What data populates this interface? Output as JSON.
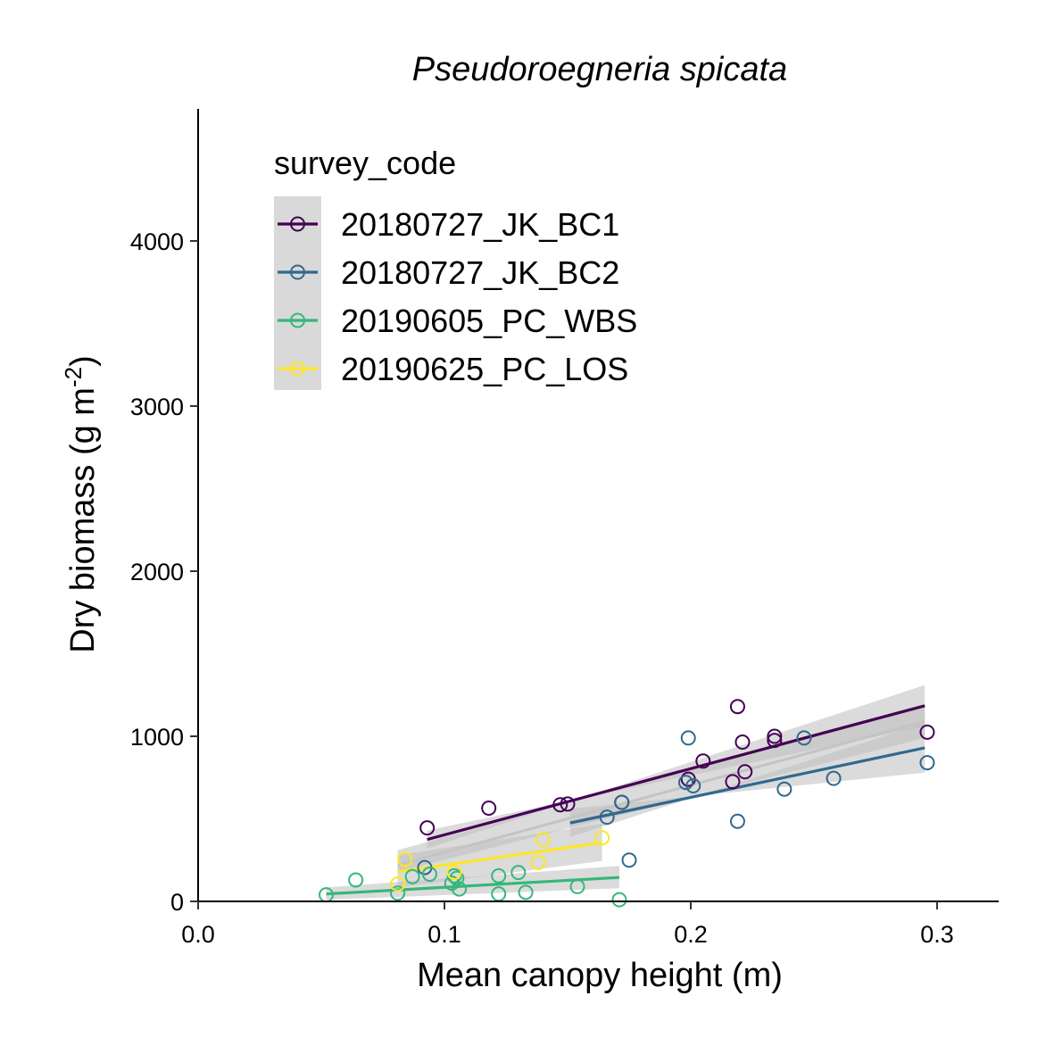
{
  "chart_data": {
    "type": "scatter",
    "title": "Pseudoroegneria spicata",
    "xlabel": "Mean canopy height (m)",
    "ylabel_main": "Dry biomass (g m",
    "ylabel_exp": "-2",
    "ylabel_close": ")",
    "xlim": [
      0,
      0.325
    ],
    "ylim": [
      0,
      4800
    ],
    "x_ticks": [
      0.0,
      0.1,
      0.2,
      0.3
    ],
    "x_tick_labels": [
      "0.0",
      "0.1",
      "0.2",
      "0.3"
    ],
    "y_ticks": [
      0,
      1000,
      2000,
      3000,
      4000
    ],
    "y_tick_labels": [
      "0",
      "1000",
      "2000",
      "3000",
      "4000"
    ],
    "grid": false,
    "legend_title": "survey_code",
    "legend_position": "top-left",
    "overall_fit": {
      "x": [
        0.081,
        0.295
      ],
      "y": [
        220,
        1090
      ],
      "band": [
        [
          310,
          180
        ],
        [
          1190,
          990
        ]
      ]
    },
    "series": [
      {
        "name": "20180727_JK_BC1",
        "color": "#440154",
        "points": [
          [
            0.093,
            445
          ],
          [
            0.118,
            565
          ],
          [
            0.147,
            585
          ],
          [
            0.15,
            590
          ],
          [
            0.172,
            600
          ],
          [
            0.199,
            740
          ],
          [
            0.205,
            850
          ],
          [
            0.217,
            725
          ],
          [
            0.219,
            1180
          ],
          [
            0.221,
            965
          ],
          [
            0.222,
            785
          ],
          [
            0.234,
            1000
          ],
          [
            0.234,
            975
          ],
          [
            0.296,
            1025
          ]
        ],
        "fit": {
          "x": [
            0.093,
            0.295
          ],
          "y": [
            375,
            1185
          ],
          "band": [
            [
              320,
              430
            ],
            [
              1310,
              1060
            ]
          ]
        }
      },
      {
        "name": "20180727_JK_BC2",
        "color": "#31688E",
        "points": [
          [
            0.092,
            205
          ],
          [
            0.166,
            510
          ],
          [
            0.172,
            600
          ],
          [
            0.175,
            250
          ],
          [
            0.198,
            720
          ],
          [
            0.199,
            990
          ],
          [
            0.201,
            700
          ],
          [
            0.219,
            485
          ],
          [
            0.238,
            680
          ],
          [
            0.246,
            990
          ],
          [
            0.258,
            745
          ],
          [
            0.296,
            840
          ]
        ],
        "fit": {
          "x": [
            0.151,
            0.295
          ],
          "y": [
            475,
            930
          ],
          "band": [
            [
              390,
              560
            ],
            [
              1080,
              780
            ]
          ]
        }
      },
      {
        "name": "20190605_PC_WBS",
        "color": "#35B779",
        "points": [
          [
            0.052,
            40
          ],
          [
            0.064,
            130
          ],
          [
            0.081,
            50
          ],
          [
            0.087,
            150
          ],
          [
            0.094,
            165
          ],
          [
            0.103,
            110
          ],
          [
            0.104,
            155
          ],
          [
            0.105,
            140
          ],
          [
            0.106,
            75
          ],
          [
            0.122,
            45
          ],
          [
            0.122,
            155
          ],
          [
            0.13,
            175
          ],
          [
            0.133,
            55
          ],
          [
            0.154,
            90
          ],
          [
            0.171,
            10
          ]
        ],
        "fit": {
          "x": [
            0.052,
            0.171
          ],
          "y": [
            45,
            145
          ],
          "band": [
            [
              85,
              10
            ],
            [
              215,
              80
            ]
          ]
        }
      },
      {
        "name": "20190625_PC_LOS",
        "color": "#FDE725",
        "points": [
          [
            0.081,
            105
          ],
          [
            0.084,
            255
          ],
          [
            0.104,
            175
          ],
          [
            0.138,
            235
          ],
          [
            0.14,
            375
          ],
          [
            0.164,
            385
          ]
        ],
        "fit": {
          "x": [
            0.081,
            0.164
          ],
          "y": [
            180,
            355
          ],
          "band": [
            [
              280,
              85
            ],
            [
              470,
              245
            ]
          ]
        }
      }
    ]
  }
}
